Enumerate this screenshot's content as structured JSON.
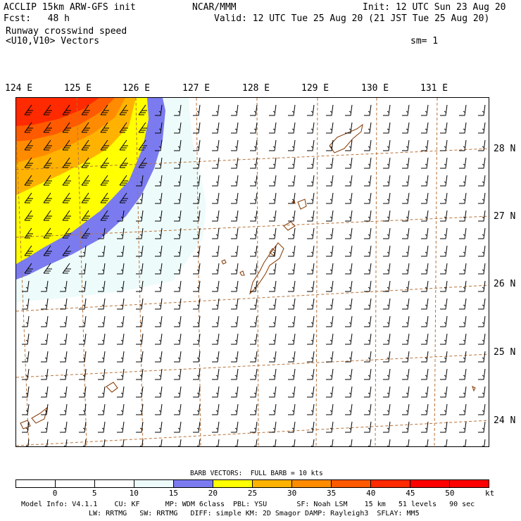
{
  "header": {
    "model_title": "ACCLIP 15km ARW-GFS init",
    "forecast": "Fcst:   48 h",
    "org": "NCAR/MMM",
    "init": "Init: 12 UTC Sun 23 Aug 20",
    "valid": "Valid: 12 UTC Tue 25 Aug 20 (21 JST Tue 25 Aug 20)",
    "field_name": "Runway crosswind speed",
    "vectors": "<U10,V10> Vectors",
    "smoothing": "sm= 1"
  },
  "map": {
    "lon_labels": [
      "124 E",
      "125 E",
      "126 E",
      "127 E",
      "128 E",
      "129 E",
      "130 E",
      "131 E"
    ],
    "lat_labels": [
      "28 N",
      "27 N",
      "26 N",
      "25 N",
      "24 N"
    ],
    "grid_color": "#b8733a",
    "coast_color": "#8b4513",
    "barb_color": "#000000"
  },
  "colorbar": {
    "title": "BARB VECTORS:  FULL BARB = 10 kts",
    "ticks": [
      "0",
      "5",
      "10",
      "15",
      "20",
      "25",
      "30",
      "35",
      "40",
      "45",
      "50"
    ],
    "unit": "kt",
    "colors": [
      "#ffffff",
      "#ffffff",
      "#ffffff",
      "#eefbfb",
      "#7b7bef",
      "#ffff00",
      "#ffb300",
      "#ff8c00",
      "#ff5a00",
      "#ff2a00",
      "#ff0000",
      "#ff0000"
    ]
  },
  "footer": {
    "line1": "Model Info: V4.1.1    CU: KF      MP: WDM 6class  PBL: YSU       SF: Noah LSM    15 km   51 levels   90 sec",
    "line2": "LW: RRTMG   SW: RRTMG   DIFF: simple KM: 2D Smagor DAMP: Rayleigh3  SFLAY: MM5"
  }
}
